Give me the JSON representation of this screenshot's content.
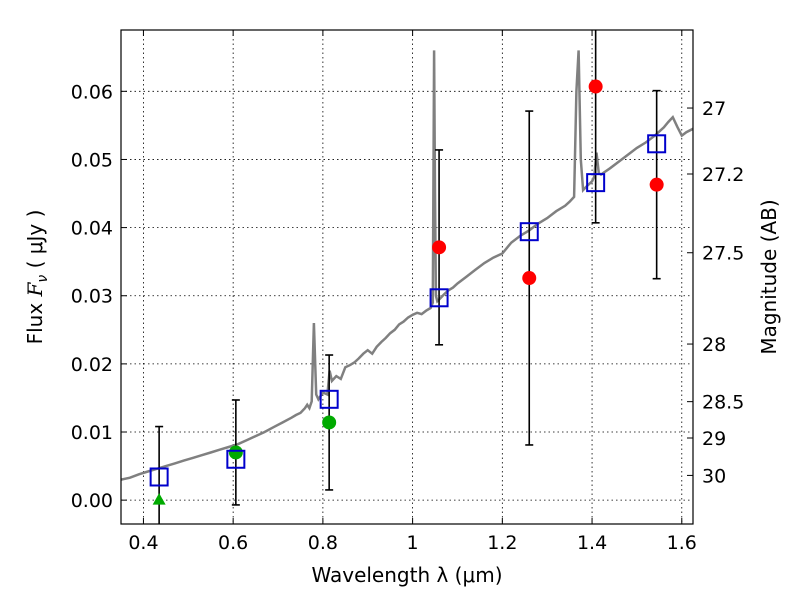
{
  "chart_data": {
    "type": "scatter",
    "xlabel": "Wavelength  λ (μm)",
    "ylabel_prefix": "Flux  ",
    "ylabel_symbol": "F",
    "ylabel_sub": "ν",
    "ylabel_units": "  ( μJy )",
    "y2label": "Magnitude (AB)",
    "xlim": [
      0.35,
      1.625
    ],
    "ylim": [
      -0.0035,
      0.069
    ],
    "grid": true,
    "x_ticks": [
      {
        "v": 0.4,
        "label": "0.4"
      },
      {
        "v": 0.6,
        "label": "0.6"
      },
      {
        "v": 0.8,
        "label": "0.8"
      },
      {
        "v": 1.0,
        "label": "1"
      },
      {
        "v": 1.2,
        "label": "1.2"
      },
      {
        "v": 1.4,
        "label": "1.4"
      },
      {
        "v": 1.6,
        "label": "1.6"
      }
    ],
    "y_ticks": [
      {
        "v": 0.0,
        "label": "0.00"
      },
      {
        "v": 0.01,
        "label": "0.01"
      },
      {
        "v": 0.02,
        "label": "0.02"
      },
      {
        "v": 0.03,
        "label": "0.03"
      },
      {
        "v": 0.04,
        "label": "0.04"
      },
      {
        "v": 0.05,
        "label": "0.05"
      },
      {
        "v": 0.06,
        "label": "0.06"
      }
    ],
    "mag_ticks": [
      {
        "mag": 27,
        "label": "27"
      },
      {
        "mag": 27.2,
        "label": "27.2"
      },
      {
        "mag": 27.5,
        "label": "27.5"
      },
      {
        "mag": 28,
        "label": "28"
      },
      {
        "mag": 28.5,
        "label": "28.5"
      },
      {
        "mag": 29,
        "label": "29"
      },
      {
        "mag": 30,
        "label": "30"
      }
    ],
    "spectrum": {
      "color": "#808080",
      "x": [
        0.35,
        0.37,
        0.39,
        0.41,
        0.43,
        0.45,
        0.47,
        0.49,
        0.51,
        0.53,
        0.55,
        0.57,
        0.59,
        0.61,
        0.63,
        0.65,
        0.67,
        0.69,
        0.71,
        0.73,
        0.74,
        0.75,
        0.76,
        0.765,
        0.77,
        0.775,
        0.78,
        0.785,
        0.79,
        0.8,
        0.81,
        0.815,
        0.82,
        0.83,
        0.84,
        0.85,
        0.86,
        0.87,
        0.88,
        0.89,
        0.9,
        0.91,
        0.92,
        0.93,
        0.94,
        0.95,
        0.96,
        0.97,
        0.98,
        0.99,
        1.0,
        1.01,
        1.02,
        1.03,
        1.04,
        1.045,
        1.048,
        1.05,
        1.052,
        1.055,
        1.06,
        1.07,
        1.08,
        1.09,
        1.1,
        1.12,
        1.14,
        1.16,
        1.18,
        1.2,
        1.22,
        1.24,
        1.26,
        1.28,
        1.3,
        1.32,
        1.34,
        1.35,
        1.36,
        1.365,
        1.37,
        1.375,
        1.38,
        1.39,
        1.4,
        1.405,
        1.41,
        1.415,
        1.42,
        1.44,
        1.46,
        1.48,
        1.5,
        1.52,
        1.54,
        1.56,
        1.57,
        1.58,
        1.59,
        1.6,
        1.61,
        1.625
      ],
      "y": [
        0.003,
        0.0033,
        0.0038,
        0.0042,
        0.0046,
        0.005,
        0.0054,
        0.0058,
        0.0062,
        0.0066,
        0.007,
        0.0074,
        0.0078,
        0.0082,
        0.0088,
        0.0094,
        0.01,
        0.0107,
        0.0114,
        0.0121,
        0.0125,
        0.0128,
        0.0135,
        0.014,
        0.0135,
        0.0145,
        0.026,
        0.0155,
        0.0148,
        0.0158,
        0.0155,
        0.019,
        0.0175,
        0.0182,
        0.0178,
        0.0195,
        0.0198,
        0.0202,
        0.0208,
        0.0215,
        0.022,
        0.0215,
        0.0225,
        0.0232,
        0.0238,
        0.0245,
        0.025,
        0.0258,
        0.0262,
        0.0268,
        0.0272,
        0.0275,
        0.0273,
        0.0278,
        0.0282,
        0.029,
        0.066,
        0.045,
        0.03,
        0.0292,
        0.0295,
        0.0302,
        0.0308,
        0.0312,
        0.0318,
        0.0328,
        0.0338,
        0.0348,
        0.0356,
        0.0362,
        0.0378,
        0.0388,
        0.0396,
        0.0406,
        0.0414,
        0.0424,
        0.0432,
        0.0438,
        0.0445,
        0.06,
        0.066,
        0.05,
        0.0455,
        0.0462,
        0.0468,
        0.0475,
        0.051,
        0.048,
        0.0478,
        0.0487,
        0.0497,
        0.0507,
        0.0517,
        0.0525,
        0.0535,
        0.0547,
        0.0555,
        0.0562,
        0.0548,
        0.0535,
        0.054,
        0.0545
      ]
    },
    "model_photometry": {
      "color": "#0000cc",
      "marker": "open-square",
      "points": [
        {
          "x": 0.435,
          "y": 0.0034
        },
        {
          "x": 0.606,
          "y": 0.006
        },
        {
          "x": 0.814,
          "y": 0.0148
        },
        {
          "x": 1.059,
          "y": 0.0297
        },
        {
          "x": 1.26,
          "y": 0.0394
        },
        {
          "x": 1.408,
          "y": 0.0466
        },
        {
          "x": 1.544,
          "y": 0.0523
        }
      ]
    },
    "observed_photometry": [
      {
        "x": 0.435,
        "y": 0.0,
        "yerr": 0.0108,
        "marker": "triangle",
        "color": "#00aa00"
      },
      {
        "x": 0.606,
        "y": 0.007,
        "yerr": 0.0077,
        "marker": "circle",
        "color": "#00aa00"
      },
      {
        "x": 0.814,
        "y": 0.0114,
        "yerr": 0.0099,
        "marker": "circle",
        "color": "#00aa00"
      },
      {
        "x": 1.059,
        "y": 0.0371,
        "yerr": 0.0143,
        "marker": "circle",
        "color": "#ff0000"
      },
      {
        "x": 1.26,
        "y": 0.0326,
        "yerr": 0.0245,
        "marker": "circle",
        "color": "#ff0000"
      },
      {
        "x": 1.408,
        "y": 0.0607,
        "yerr": 0.02,
        "marker": "circle",
        "color": "#ff0000"
      },
      {
        "x": 1.544,
        "y": 0.0463,
        "yerr": 0.0138,
        "marker": "circle",
        "color": "#ff0000"
      }
    ]
  }
}
